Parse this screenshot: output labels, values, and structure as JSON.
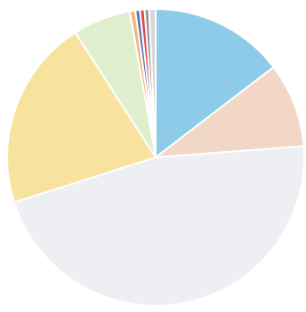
{
  "chart_data": {
    "type": "pie",
    "slices": [
      {
        "value": 14.6,
        "color": "#8ecbe8"
      },
      {
        "value": 9.2,
        "color": "#f2d6c6"
      },
      {
        "value": 46.3,
        "color": "#eeeff3"
      },
      {
        "value": 20.8,
        "color": "#f7e39e"
      },
      {
        "value": 6.3,
        "color": "#dfeecd"
      },
      {
        "value": 0.6,
        "color": "#f6b57e"
      },
      {
        "value": 0.5,
        "color": "#5a76b4"
      },
      {
        "value": 0.5,
        "color": "#d84c4c"
      },
      {
        "value": 0.5,
        "color": "#9a9a9a"
      },
      {
        "value": 0.7,
        "color": "#d7d7d7"
      }
    ],
    "start_angle_deg": 0,
    "direction": "clockwise",
    "legend": "none",
    "labels": "none"
  }
}
